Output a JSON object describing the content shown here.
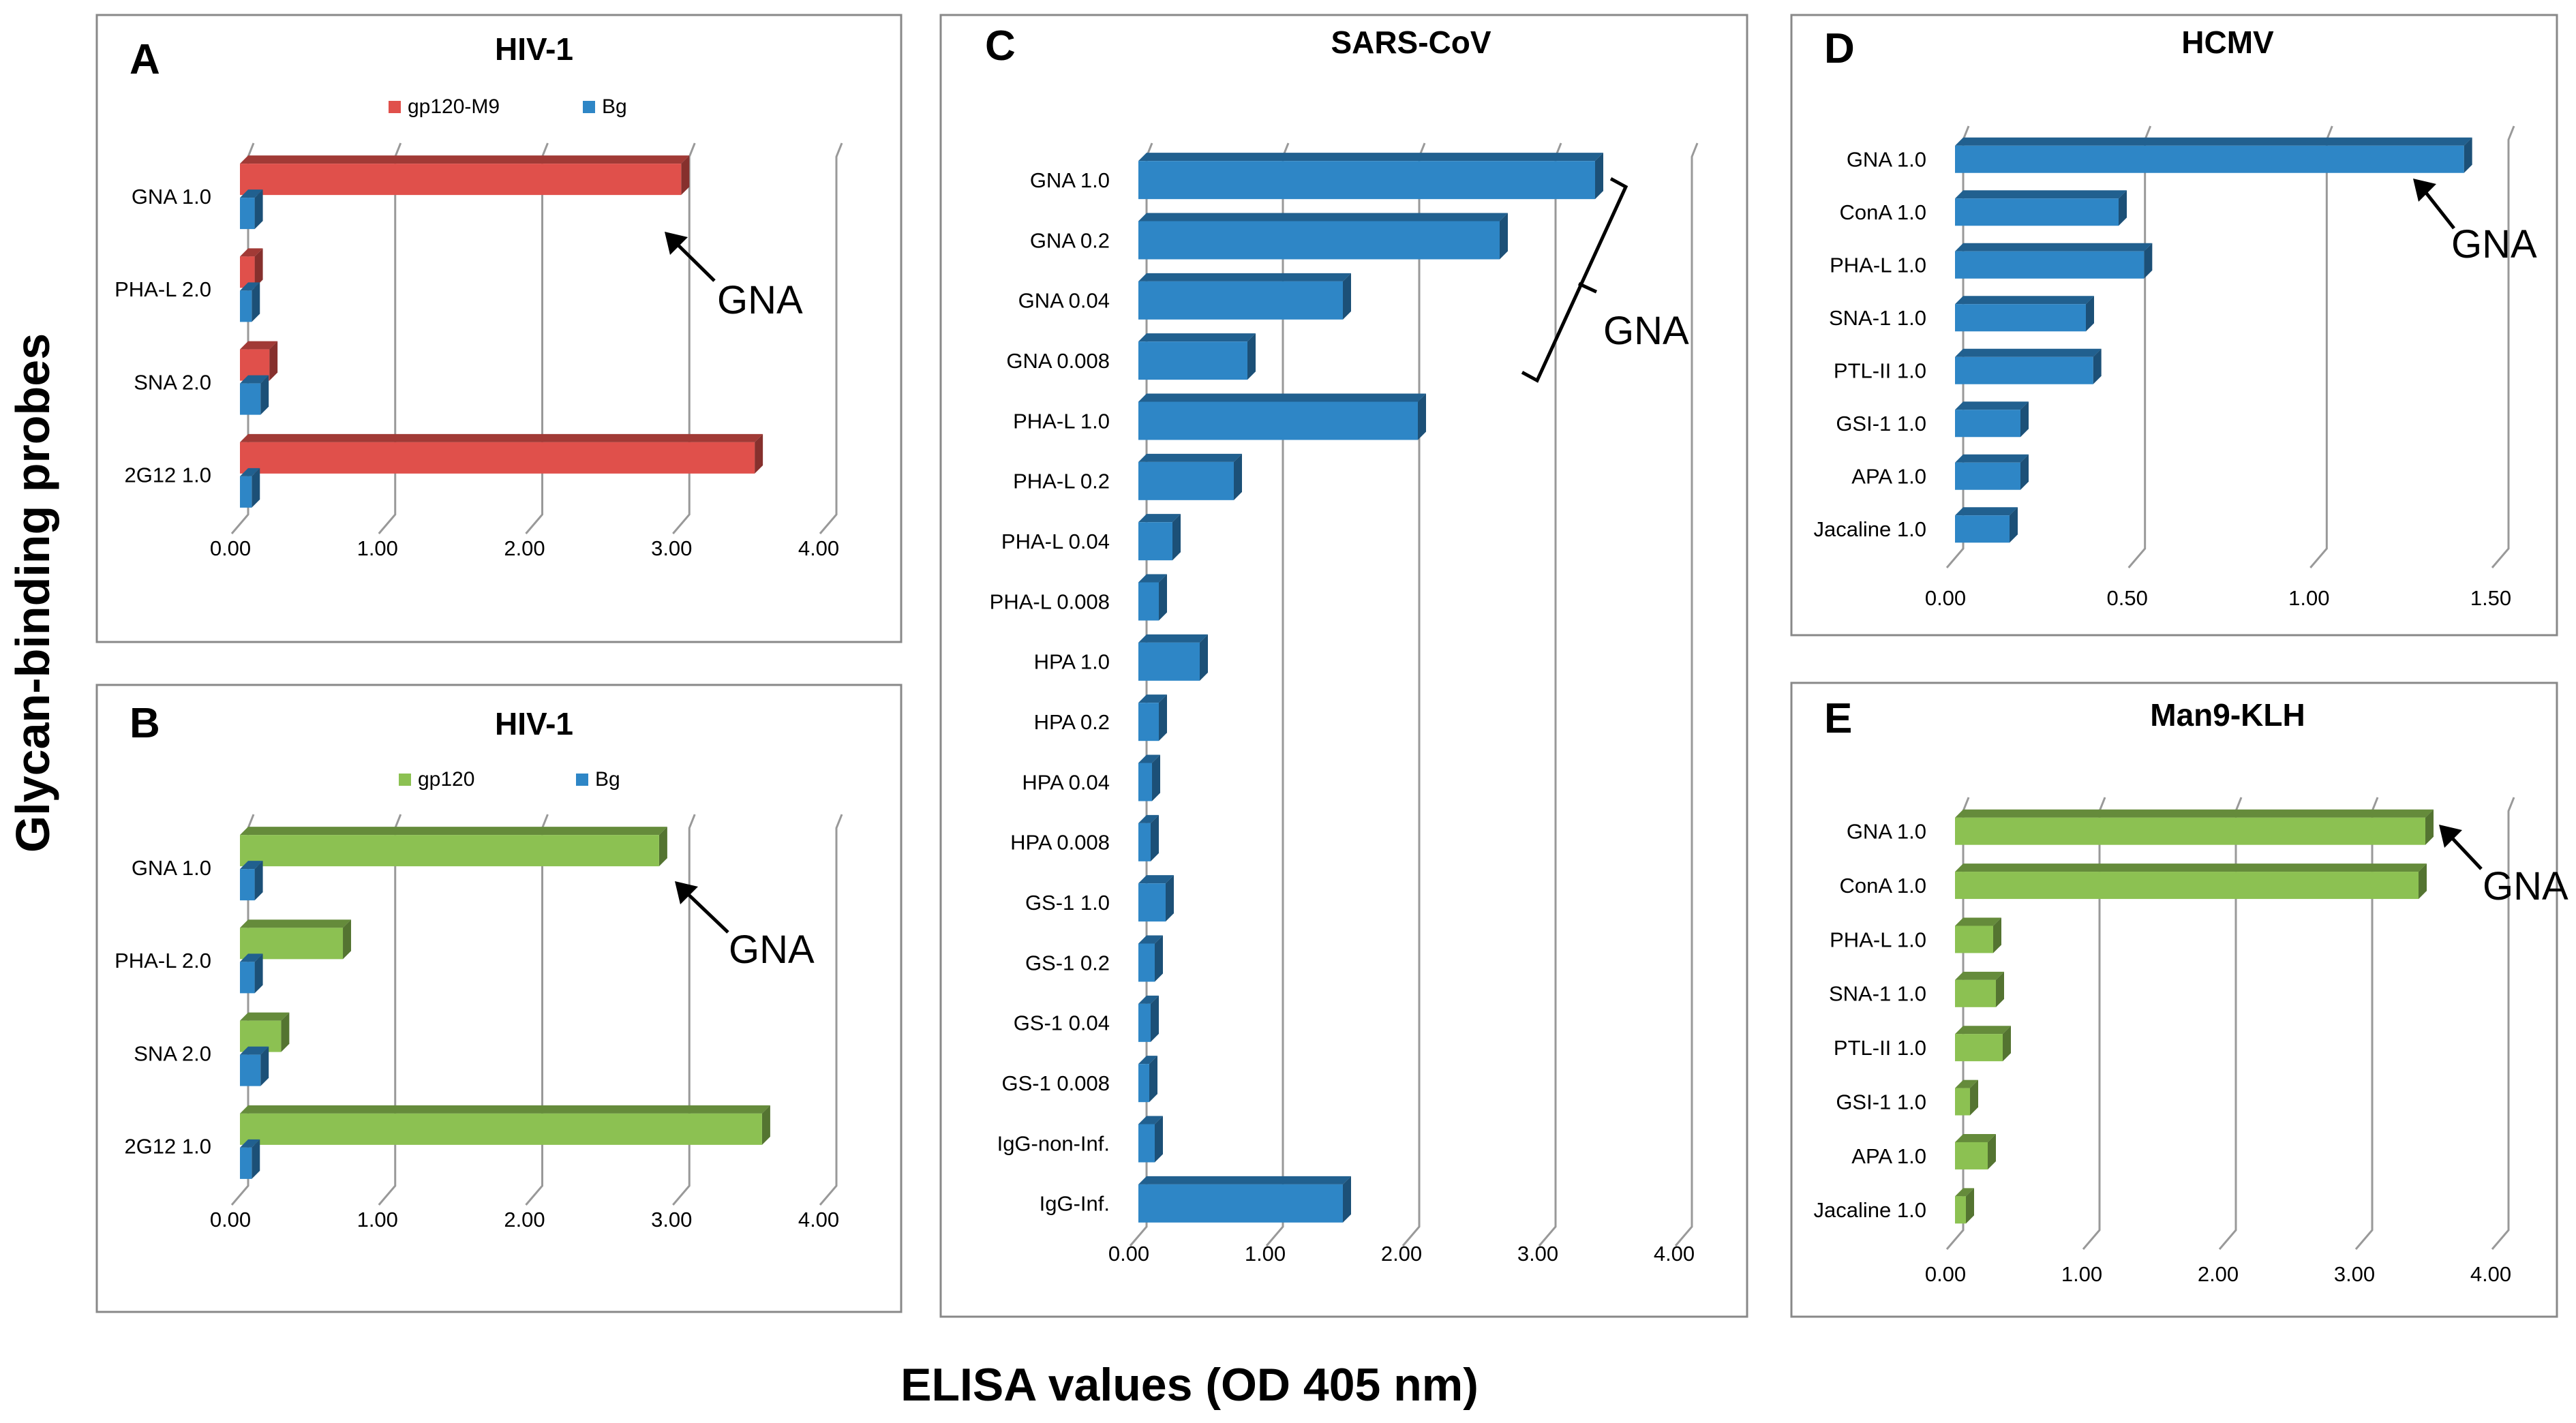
{
  "figure": {
    "y_axis_label": "Glycan-binding probes",
    "x_axis_label": "ELISA values (OD 405 nm)",
    "colors": {
      "red": "#e0504b",
      "blue": "#2e86c6",
      "green": "#8cc152",
      "grid": "#999999",
      "frame": "#888888",
      "text": "#000000"
    }
  },
  "chart_data": [
    {
      "id": "A",
      "type": "bar",
      "orientation": "horizontal",
      "panel_letter": "A",
      "title": "HIV-1",
      "categories": [
        "GNA 1.0",
        "PHA-L 2.0",
        "SNA  2.0",
        "2G12 1.0"
      ],
      "series": [
        {
          "name": "gp120-M9",
          "color": "#e0504b",
          "values": [
            3.0,
            0.1,
            0.2,
            3.5
          ]
        },
        {
          "name": "Bg",
          "color": "#2e86c6",
          "values": [
            0.1,
            0.08,
            0.14,
            0.08
          ]
        }
      ],
      "xlim": [
        0,
        4
      ],
      "ticks": [
        "0.00",
        "1.00",
        "2.00",
        "3.00",
        "4.00"
      ],
      "annotation": {
        "text": "GNA",
        "type": "arrow",
        "target": "GNA 1.0"
      }
    },
    {
      "id": "B",
      "type": "bar",
      "orientation": "horizontal",
      "panel_letter": "B",
      "title": "HIV-1",
      "categories": [
        "GNA 1.0",
        "PHA-L 2.0",
        "SNA  2.0",
        "2G12 1.0"
      ],
      "series": [
        {
          "name": "gp120",
          "color": "#8cc152",
          "values": [
            2.85,
            0.7,
            0.28,
            3.55
          ]
        },
        {
          "name": "Bg",
          "color": "#2e86c6",
          "values": [
            0.1,
            0.1,
            0.14,
            0.08
          ]
        }
      ],
      "xlim": [
        0,
        4
      ],
      "ticks": [
        "0.00",
        "1.00",
        "2.00",
        "3.00",
        "4.00"
      ],
      "annotation": {
        "text": "GNA",
        "type": "arrow",
        "target": "GNA 1.0"
      }
    },
    {
      "id": "C",
      "type": "bar",
      "orientation": "horizontal",
      "panel_letter": "C",
      "title": "SARS-CoV",
      "categories": [
        "GNA 1.0",
        "GNA 0.2",
        "GNA 0.04",
        "GNA 0.008",
        "PHA-L 1.0",
        "PHA-L 0.2",
        "PHA-L 0.04",
        "PHA-L 0.008",
        "HPA 1.0",
        "HPA 0.2",
        "HPA 0.04",
        "HPA 0.008",
        "GS-1 1.0",
        "GS-1 0.2",
        "GS-1 0.04",
        "GS-1 0.008",
        "IgG-non-Inf.",
        "IgG-Inf."
      ],
      "series": [
        {
          "name": "",
          "color": "#2e86c6",
          "values": [
            3.35,
            2.65,
            1.5,
            0.8,
            2.05,
            0.7,
            0.25,
            0.15,
            0.45,
            0.15,
            0.1,
            0.09,
            0.2,
            0.12,
            0.09,
            0.08,
            0.12,
            1.5
          ]
        }
      ],
      "xlim": [
        0,
        4
      ],
      "ticks": [
        "0.00",
        "1.00",
        "2.00",
        "3.00",
        "4.00"
      ],
      "annotation": {
        "text": "GNA",
        "type": "bracket",
        "target": [
          "GNA 1.0",
          "GNA 0.008"
        ]
      }
    },
    {
      "id": "D",
      "type": "bar",
      "orientation": "horizontal",
      "panel_letter": "D",
      "title": "HCMV",
      "categories": [
        "GNA 1.0",
        "ConA 1.0",
        "PHA-L 1.0",
        "SNA-1 1.0",
        "PTL-II 1.0",
        "GSI-1 1.0",
        "APA 1.0",
        "Jacaline 1.0"
      ],
      "series": [
        {
          "name": "",
          "color": "#2e86c6",
          "values": [
            1.4,
            0.45,
            0.52,
            0.36,
            0.38,
            0.18,
            0.18,
            0.15
          ]
        }
      ],
      "xlim": [
        0,
        1.5
      ],
      "ticks": [
        "0.00",
        "0.50",
        "1.00",
        "1.50"
      ],
      "annotation": {
        "text": "GNA",
        "type": "arrow",
        "target": "GNA 1.0"
      }
    },
    {
      "id": "E",
      "type": "bar",
      "orientation": "horizontal",
      "panel_letter": "E",
      "title": "Man9-KLH",
      "categories": [
        "GNA 1.0",
        "ConA 1.0",
        "PHA-L 1.0",
        "SNA-1 1.0",
        "PTL-II 1.0",
        "GSI-1 1.0",
        "APA 1.0",
        "Jacaline 1.0"
      ],
      "series": [
        {
          "name": "",
          "color": "#8cc152",
          "values": [
            3.45,
            3.4,
            0.28,
            0.3,
            0.35,
            0.11,
            0.24,
            0.08
          ]
        }
      ],
      "xlim": [
        0,
        4
      ],
      "ticks": [
        "0.00",
        "1.00",
        "2.00",
        "3.00",
        "4.00"
      ],
      "annotation": {
        "text": "GNA",
        "type": "arrow",
        "target": "GNA 1.0"
      }
    }
  ]
}
